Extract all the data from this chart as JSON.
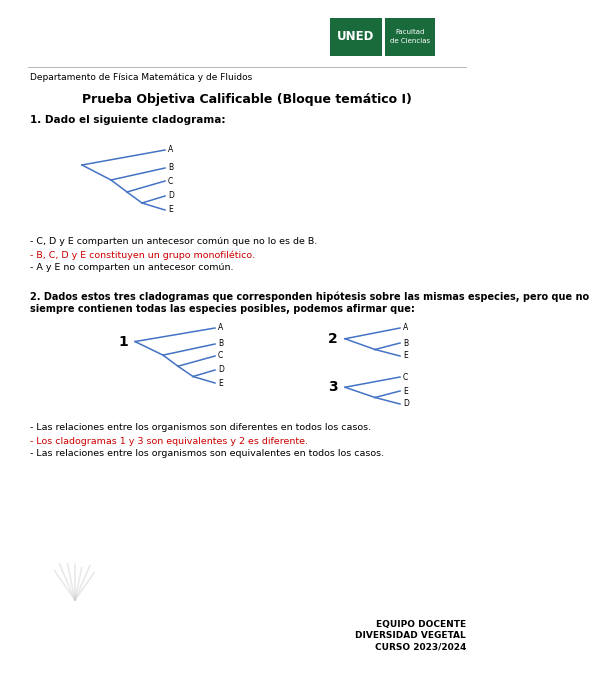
{
  "bg_color": "#ffffff",
  "header_dept": "Departamento de Física Matemática y de Fluidos",
  "title": "Prueba Objetiva Calificable (Bloque temático I)",
  "q1_label": "1. Dado el siguiente cladograma:",
  "q1_answers": [
    {
      "text": "- C, D y E comparten un antecesor común que no lo es de B.",
      "color": "#000000"
    },
    {
      "text": "- B, C, D y E constituyen un grupo monofilético.",
      "color": "#cc0000"
    },
    {
      "text": "- A y E no comparten un antecesor común.",
      "color": "#000000"
    }
  ],
  "q2_label_1": "2. Dados estos tres cladogramas que corresponden hipótesis sobre las mismas especies, pero que no",
  "q2_label_2": "siempre contienen todas las especies posibles, podemos afirmar que:",
  "q2_answers": [
    {
      "text": "- Las relaciones entre los organismos son diferentes en todos los casos.",
      "color": "#000000"
    },
    {
      "text": "- Los cladogramas 1 y 3 son equivalentes y 2 es diferente.",
      "color": "#cc0000"
    },
    {
      "text": "- Las relaciones entre los organismos son equivalentes en todos los casos.",
      "color": "#000000"
    }
  ],
  "footer_lines": [
    "EQUIPO DOCENTE",
    "DIVERSIDAD VEGETAL",
    "CURSO 2023/2024"
  ],
  "uned_color": "#1a6b3c",
  "line_color": "#4472c4",
  "sep_color": "#aaaaaa",
  "text_color": "#000000"
}
